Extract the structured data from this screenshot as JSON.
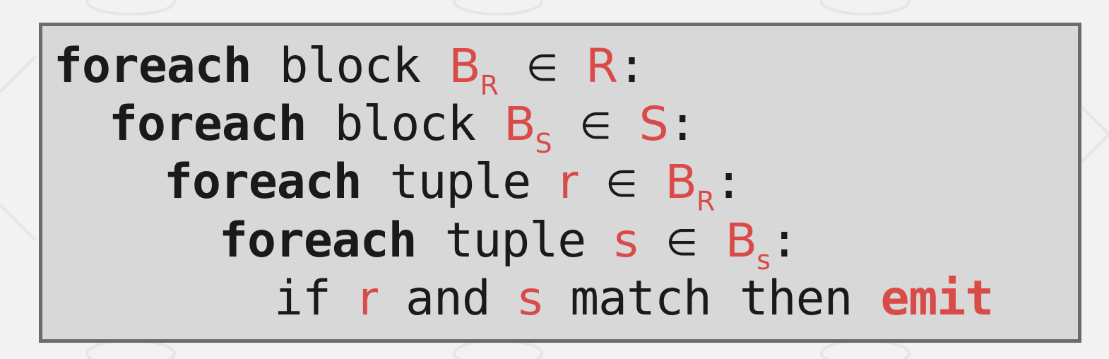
{
  "accent_color": "#d94b48",
  "box_bg": "#d8d8d8",
  "box_border": "#6b6b6b",
  "lines": [
    {
      "k1": "foreach",
      "k2": "block",
      "v1": "B",
      "v1sub": "R",
      "in": "∈",
      "v2": "R",
      "end": ":"
    },
    {
      "k1": "foreach",
      "k2": "block",
      "v1": "B",
      "v1sub": "S",
      "in": "∈",
      "v2": "S",
      "end": ":"
    },
    {
      "k1": "foreach",
      "k2": "tuple",
      "v1": "r",
      "in": "∈",
      "v2": "B",
      "v2sub": "R",
      "end": ":"
    },
    {
      "k1": "foreach",
      "k2": "tuple",
      "v1": "s",
      "in": "∈",
      "v2": "B",
      "v2sub": "s",
      "end": ":"
    },
    {
      "k1": "if",
      "v1": "r",
      "k2": "and",
      "v2": "s",
      "k3": "match",
      "k4": "then",
      "k5": "emit"
    }
  ]
}
